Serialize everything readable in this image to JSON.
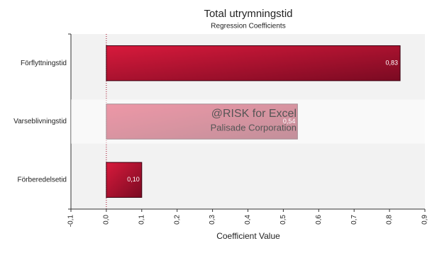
{
  "chart_data": {
    "type": "barh",
    "title": "Total  utrymningstid",
    "subtitle": "Regression Coefficients",
    "xlabel": "Coefficient Value",
    "categories": [
      "Förflyttningstid",
      "Varseblivningstid",
      "Förberedelsetid"
    ],
    "values": [
      0.83,
      0.54,
      0.1
    ],
    "value_labels": [
      "0,83",
      "0,54",
      "0,10"
    ],
    "color": "#c0102e",
    "xlim": [
      -0.1,
      0.9
    ],
    "xticks": [
      {
        "value": -0.1,
        "label": "-0,1"
      },
      {
        "value": 0,
        "label": "0,0"
      },
      {
        "value": 0.1,
        "label": "0,1"
      },
      {
        "value": 0.2,
        "label": "0,2"
      },
      {
        "value": 0.3,
        "label": "0,3"
      },
      {
        "value": 0.4,
        "label": "0,4"
      },
      {
        "value": 0.5,
        "label": "0,5"
      },
      {
        "value": 0.6,
        "label": "0,6"
      },
      {
        "value": 0.7,
        "label": "0,7"
      },
      {
        "value": 0.8,
        "label": "0,8"
      },
      {
        "value": 0.9,
        "label": "0,9"
      }
    ],
    "watermark": [
      "@RISK for Excel",
      "Palisade Corporation"
    ]
  }
}
